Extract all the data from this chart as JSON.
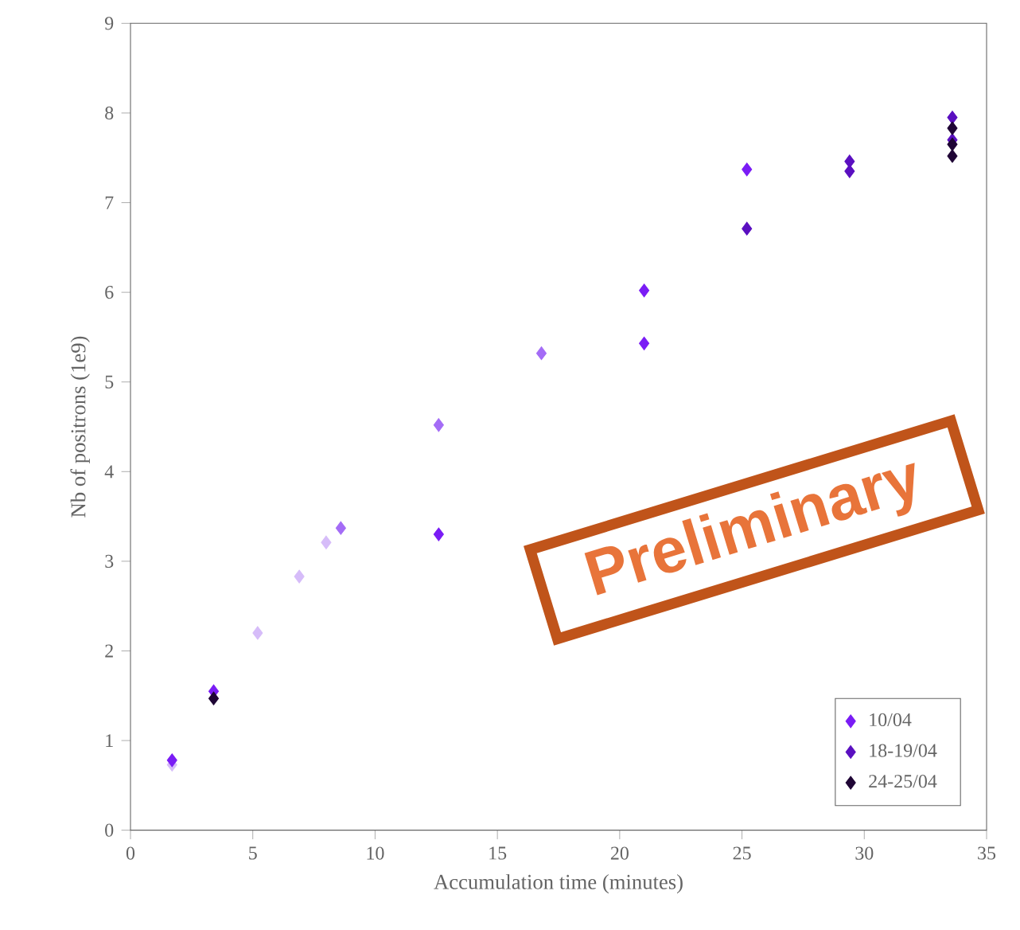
{
  "chart_data": {
    "type": "scatter",
    "xlabel": "Accumulation time (minutes)",
    "ylabel": "Nb of positrons (1e9)",
    "xlim": [
      0,
      35
    ],
    "xticks": [
      0,
      5,
      10,
      15,
      20,
      25,
      30,
      35
    ],
    "ylim": [
      0,
      9
    ],
    "yticks": [
      0,
      1,
      2,
      3,
      4,
      5,
      6,
      7,
      8,
      9
    ],
    "marker": "diamond",
    "legend": "bottom right",
    "grid": false,
    "series": [
      {
        "color": "#d6bcf9",
        "x": [
          1.7,
          5.2,
          6.9,
          8.0
        ],
        "values": [
          0.73,
          2.2,
          2.83,
          3.21
        ]
      },
      {
        "color": "#a46cf6",
        "x": [
          8.6,
          12.6,
          16.8
        ],
        "values": [
          3.37,
          4.52,
          5.32
        ]
      },
      {
        "name": "10/04",
        "color": "#7a1cf5",
        "x": [
          1.7,
          3.4,
          12.6,
          21.0,
          21.0,
          25.2
        ],
        "values": [
          0.78,
          1.55,
          3.3,
          5.43,
          6.02,
          7.37
        ]
      },
      {
        "name": "18-19/04",
        "color": "#5a0fc0",
        "x": [
          25.2,
          29.4,
          29.4,
          33.6,
          33.6
        ],
        "values": [
          6.71,
          7.35,
          7.46,
          7.95,
          7.7
        ]
      },
      {
        "name": "24-25/04",
        "color": "#1f0535",
        "x": [
          3.4,
          33.6,
          33.6,
          33.6
        ],
        "values": [
          1.47,
          7.52,
          7.65,
          7.83
        ]
      }
    ],
    "annotations": [
      "Preliminary"
    ]
  }
}
